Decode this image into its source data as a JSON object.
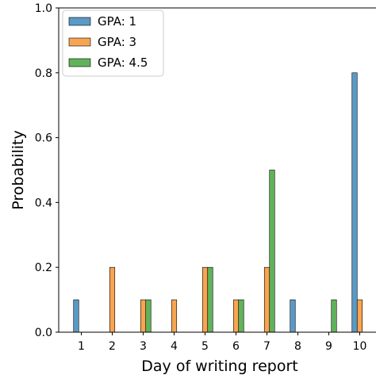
{
  "chart_data": {
    "type": "bar",
    "title": "",
    "xlabel": "Day of writing report",
    "ylabel": "Probability",
    "categories": [
      "1",
      "2",
      "3",
      "4",
      "5",
      "6",
      "7",
      "8",
      "9",
      "10"
    ],
    "ylim": [
      0,
      1.0
    ],
    "yticks": [
      "0.0",
      "0.2",
      "0.4",
      "0.6",
      "0.8",
      "1.0"
    ],
    "grid": false,
    "legend_position": "top-left",
    "series": [
      {
        "name": "GPA: 1",
        "color": "#5a9ac6",
        "values": [
          0.1,
          0,
          0,
          0,
          0,
          0,
          0,
          0.1,
          0,
          0.8
        ]
      },
      {
        "name": "GPA: 3",
        "color": "#f7a553",
        "values": [
          0,
          0.2,
          0.1,
          0.1,
          0.2,
          0.1,
          0.2,
          0,
          0,
          0.1
        ]
      },
      {
        "name": "GPA: 4.5",
        "color": "#60b35a",
        "values": [
          0,
          0,
          0.1,
          0,
          0.2,
          0.1,
          0.5,
          0,
          0.1,
          0
        ]
      }
    ]
  }
}
